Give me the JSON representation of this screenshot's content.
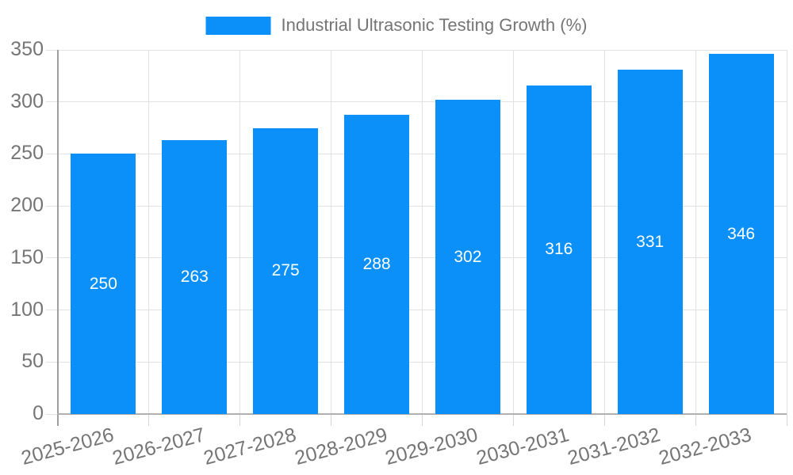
{
  "legend": {
    "label": "Industrial Ultrasonic Testing Growth (%)"
  },
  "colors": {
    "bar": "#0a90f8",
    "axis": "#9e9e9e",
    "gridline": "#e2e2e2",
    "tick_text": "#757575",
    "value_label": "#ffffff"
  },
  "chart_data": {
    "type": "bar",
    "title": "Industrial Ultrasonic Testing Growth (%)",
    "categories": [
      "2025-2026",
      "2026-2027",
      "2027-2028",
      "2028-2029",
      "2029-2030",
      "2030-2031",
      "2031-2032",
      "2032-2033"
    ],
    "values": [
      250,
      263,
      275,
      288,
      302,
      316,
      331,
      346
    ],
    "value_labels": [
      "250",
      "263",
      "275",
      "288",
      "302",
      "316",
      "331",
      "346"
    ],
    "y_ticks": [
      0,
      50,
      100,
      150,
      200,
      250,
      300,
      350
    ],
    "ylim": [
      0,
      350
    ],
    "xlabel": "",
    "ylabel": "",
    "grid": true,
    "legend_position": "top",
    "value_label_position": "center-of-bar",
    "x_tick_rotation_deg": -15
  }
}
